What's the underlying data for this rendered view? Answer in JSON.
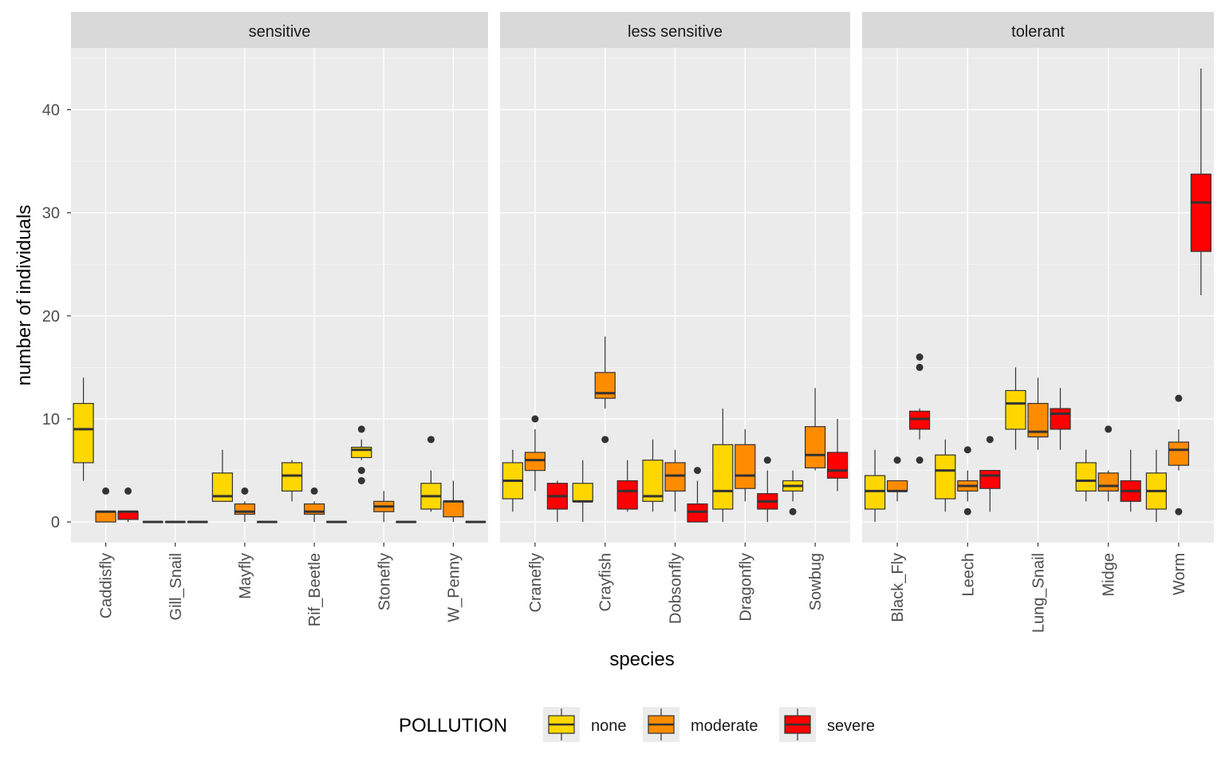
{
  "chart_data": {
    "type": "boxplot",
    "xlabel": "species",
    "ylabel": "number of individuals",
    "ylim": [
      -2,
      46
    ],
    "yticks": [
      0,
      10,
      20,
      30,
      40
    ],
    "legend": {
      "title": "POLLUTION",
      "position": "bottom",
      "items": [
        {
          "label": "none",
          "color": "#FFD700"
        },
        {
          "label": "moderate",
          "color": "#FF8C00"
        },
        {
          "label": "severe",
          "color": "#FF0000"
        }
      ]
    },
    "panels": [
      {
        "label": "sensitive",
        "species": [
          {
            "name": "Caddisfly",
            "boxes": [
              {
                "group": "none",
                "min": 4,
                "q1": 5.75,
                "median": 9,
                "q3": 11.5,
                "max": 14,
                "outliers": []
              },
              {
                "group": "moderate",
                "min": 0,
                "q1": 0,
                "median": 1,
                "q3": 1,
                "max": 1,
                "outliers": [
                  3
                ]
              },
              {
                "group": "severe",
                "min": 0,
                "q1": 0.25,
                "median": 1,
                "q3": 1,
                "max": 1,
                "outliers": [
                  3
                ]
              }
            ]
          },
          {
            "name": "Gill_Snail",
            "boxes": [
              {
                "group": "none",
                "min": 0,
                "q1": 0,
                "median": 0,
                "q3": 0,
                "max": 0,
                "outliers": []
              },
              {
                "group": "moderate",
                "min": 0,
                "q1": 0,
                "median": 0,
                "q3": 0,
                "max": 0,
                "outliers": []
              },
              {
                "group": "severe",
                "min": 0,
                "q1": 0,
                "median": 0,
                "q3": 0,
                "max": 0,
                "outliers": []
              }
            ]
          },
          {
            "name": "Mayfly",
            "boxes": [
              {
                "group": "none",
                "min": 2,
                "q1": 2,
                "median": 2.5,
                "q3": 4.75,
                "max": 7,
                "outliers": []
              },
              {
                "group": "moderate",
                "min": 0,
                "q1": 0.75,
                "median": 1,
                "q3": 1.75,
                "max": 2,
                "outliers": [
                  3
                ]
              },
              {
                "group": "severe",
                "min": 0,
                "q1": 0,
                "median": 0,
                "q3": 0,
                "max": 0,
                "outliers": []
              }
            ]
          },
          {
            "name": "Rif_Beetle",
            "boxes": [
              {
                "group": "none",
                "min": 2,
                "q1": 3,
                "median": 4.5,
                "q3": 5.75,
                "max": 6,
                "outliers": []
              },
              {
                "group": "moderate",
                "min": 0,
                "q1": 0.75,
                "median": 1,
                "q3": 1.75,
                "max": 2,
                "outliers": [
                  3
                ]
              },
              {
                "group": "severe",
                "min": 0,
                "q1": 0,
                "median": 0,
                "q3": 0,
                "max": 0,
                "outliers": []
              }
            ]
          },
          {
            "name": "Stonefly",
            "boxes": [
              {
                "group": "none",
                "min": 6,
                "q1": 6.25,
                "median": 7,
                "q3": 7.25,
                "max": 8,
                "outliers": [
                  9,
                  5,
                  4
                ]
              },
              {
                "group": "moderate",
                "min": 0,
                "q1": 1,
                "median": 1.5,
                "q3": 2,
                "max": 3,
                "outliers": []
              },
              {
                "group": "severe",
                "min": 0,
                "q1": 0,
                "median": 0,
                "q3": 0,
                "max": 0,
                "outliers": []
              }
            ]
          },
          {
            "name": "W_Penny",
            "boxes": [
              {
                "group": "none",
                "min": 1,
                "q1": 1.25,
                "median": 2.5,
                "q3": 3.75,
                "max": 5,
                "outliers": [
                  8
                ]
              },
              {
                "group": "moderate",
                "min": 0,
                "q1": 0.5,
                "median": 2,
                "q3": 2,
                "max": 4,
                "outliers": []
              },
              {
                "group": "severe",
                "min": 0,
                "q1": 0,
                "median": 0,
                "q3": 0,
                "max": 0,
                "outliers": []
              }
            ]
          }
        ]
      },
      {
        "label": "less sensitive",
        "species": [
          {
            "name": "Cranefly",
            "boxes": [
              {
                "group": "none",
                "min": 1,
                "q1": 2.25,
                "median": 4,
                "q3": 5.75,
                "max": 7,
                "outliers": []
              },
              {
                "group": "moderate",
                "min": 3,
                "q1": 5,
                "median": 6,
                "q3": 6.75,
                "max": 9,
                "outliers": [
                  10
                ]
              },
              {
                "group": "severe",
                "min": 0,
                "q1": 1.25,
                "median": 2.5,
                "q3": 3.75,
                "max": 4,
                "outliers": []
              }
            ]
          },
          {
            "name": "Crayfish",
            "boxes": [
              {
                "group": "none",
                "min": 0,
                "q1": 2,
                "median": 2,
                "q3": 3.75,
                "max": 6,
                "outliers": []
              },
              {
                "group": "moderate",
                "min": 11,
                "q1": 12,
                "median": 12.5,
                "q3": 14.5,
                "max": 18,
                "outliers": [
                  8
                ]
              },
              {
                "group": "severe",
                "min": 1,
                "q1": 1.25,
                "median": 3,
                "q3": 4,
                "max": 6,
                "outliers": []
              }
            ]
          },
          {
            "name": "Dobsonfly",
            "boxes": [
              {
                "group": "none",
                "min": 1,
                "q1": 2,
                "median": 2.5,
                "q3": 6,
                "max": 8,
                "outliers": []
              },
              {
                "group": "moderate",
                "min": 1,
                "q1": 3,
                "median": 4.5,
                "q3": 5.75,
                "max": 7,
                "outliers": []
              },
              {
                "group": "severe",
                "min": 0,
                "q1": 0,
                "median": 1,
                "q3": 1.75,
                "max": 4,
                "outliers": [
                  5
                ]
              }
            ]
          },
          {
            "name": "Dragonfly",
            "boxes": [
              {
                "group": "none",
                "min": 0,
                "q1": 1.25,
                "median": 3,
                "q3": 7.5,
                "max": 11,
                "outliers": []
              },
              {
                "group": "moderate",
                "min": 2,
                "q1": 3.25,
                "median": 4.5,
                "q3": 7.5,
                "max": 9,
                "outliers": []
              },
              {
                "group": "severe",
                "min": 0,
                "q1": 1.25,
                "median": 2,
                "q3": 2.75,
                "max": 5,
                "outliers": [
                  6
                ]
              }
            ]
          },
          {
            "name": "Sowbug",
            "boxes": [
              {
                "group": "none",
                "min": 2,
                "q1": 3,
                "median": 3.5,
                "q3": 4,
                "max": 5,
                "outliers": [
                  1
                ]
              },
              {
                "group": "moderate",
                "min": 5,
                "q1": 5.25,
                "median": 6.5,
                "q3": 9.25,
                "max": 13,
                "outliers": []
              },
              {
                "group": "severe",
                "min": 3,
                "q1": 4.25,
                "median": 5,
                "q3": 6.75,
                "max": 10,
                "outliers": []
              }
            ]
          }
        ]
      },
      {
        "label": "tolerant",
        "species": [
          {
            "name": "Black_Fly",
            "boxes": [
              {
                "group": "none",
                "min": 0,
                "q1": 1.25,
                "median": 3,
                "q3": 4.5,
                "max": 7,
                "outliers": []
              },
              {
                "group": "moderate",
                "min": 2,
                "q1": 3,
                "median": 3,
                "q3": 4,
                "max": 4,
                "outliers": [
                  6
                ]
              },
              {
                "group": "severe",
                "min": 8,
                "q1": 9,
                "median": 10,
                "q3": 10.75,
                "max": 11,
                "outliers": [
                  16,
                  15,
                  6
                ]
              }
            ]
          },
          {
            "name": "Leech",
            "boxes": [
              {
                "group": "none",
                "min": 1,
                "q1": 2.25,
                "median": 5,
                "q3": 6.5,
                "max": 8,
                "outliers": []
              },
              {
                "group": "moderate",
                "min": 2,
                "q1": 3,
                "median": 3.5,
                "q3": 4,
                "max": 5,
                "outliers": [
                  7,
                  1
                ]
              },
              {
                "group": "severe",
                "min": 1,
                "q1": 3.25,
                "median": 4.5,
                "q3": 5,
                "max": 5,
                "outliers": [
                  8
                ]
              }
            ]
          },
          {
            "name": "Lung_Snail",
            "boxes": [
              {
                "group": "none",
                "min": 7,
                "q1": 9,
                "median": 11.5,
                "q3": 12.75,
                "max": 15,
                "outliers": []
              },
              {
                "group": "moderate",
                "min": 7,
                "q1": 8.25,
                "median": 8.75,
                "q3": 11.5,
                "max": 14,
                "outliers": []
              },
              {
                "group": "severe",
                "min": 7,
                "q1": 9,
                "median": 10.5,
                "q3": 11,
                "max": 13,
                "outliers": []
              }
            ]
          },
          {
            "name": "Midge",
            "boxes": [
              {
                "group": "none",
                "min": 2,
                "q1": 3,
                "median": 4,
                "q3": 5.75,
                "max": 7,
                "outliers": []
              },
              {
                "group": "moderate",
                "min": 2,
                "q1": 3,
                "median": 3.5,
                "q3": 4.75,
                "max": 5,
                "outliers": [
                  9
                ]
              },
              {
                "group": "severe",
                "min": 1,
                "q1": 2,
                "median": 3,
                "q3": 4,
                "max": 7,
                "outliers": []
              }
            ]
          },
          {
            "name": "Worm",
            "boxes": [
              {
                "group": "none",
                "min": 0,
                "q1": 1.25,
                "median": 3,
                "q3": 4.75,
                "max": 7,
                "outliers": []
              },
              {
                "group": "moderate",
                "min": 5,
                "q1": 5.5,
                "median": 7,
                "q3": 7.75,
                "max": 9,
                "outliers": [
                  12,
                  1
                ]
              },
              {
                "group": "severe",
                "min": 22,
                "q1": 26.25,
                "median": 31,
                "q3": 33.75,
                "max": 44,
                "outliers": []
              }
            ]
          }
        ]
      }
    ]
  }
}
